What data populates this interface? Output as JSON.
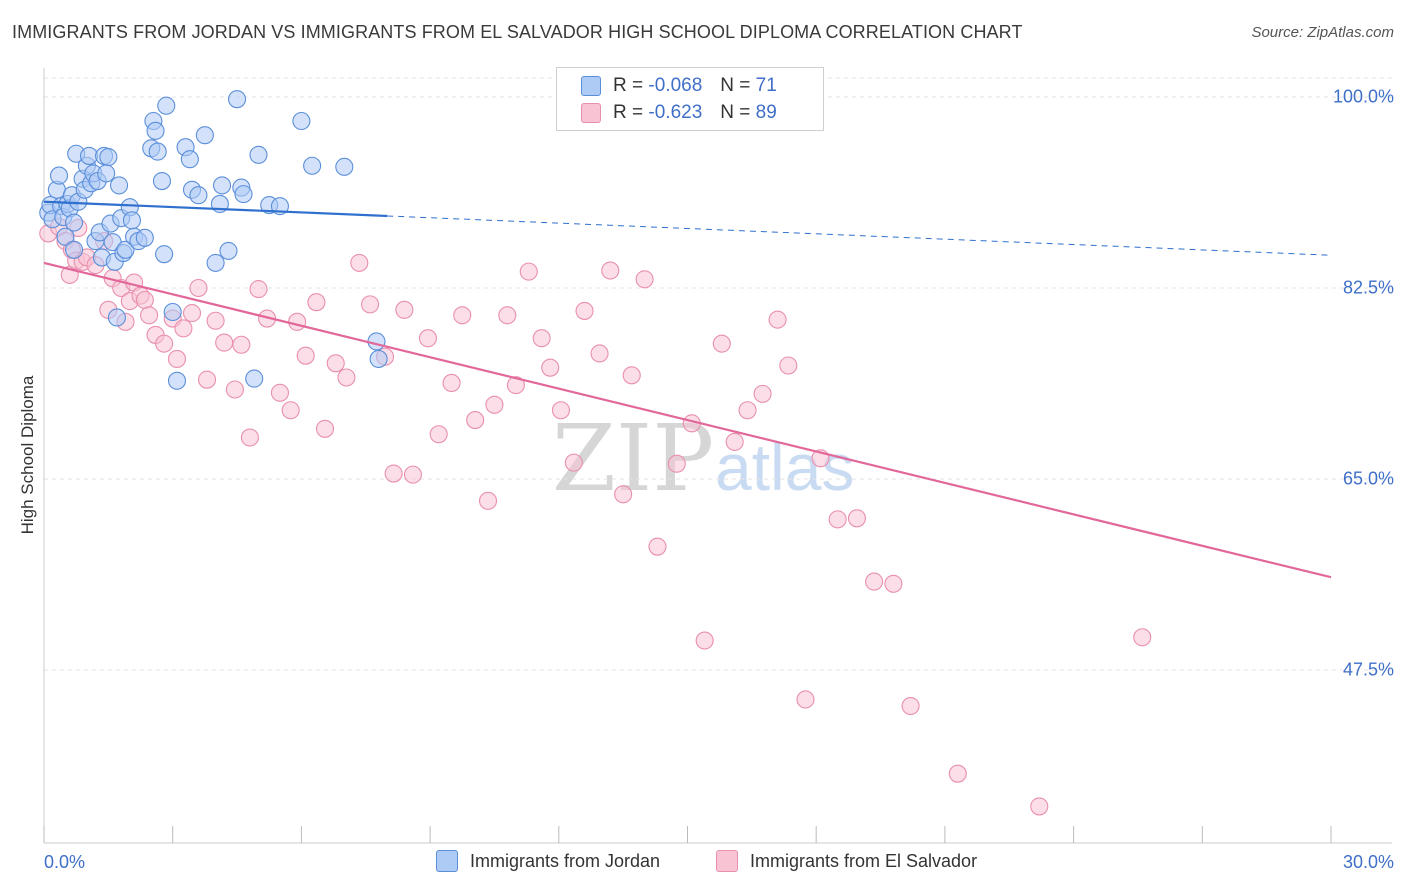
{
  "header": {
    "title": "IMMIGRANTS FROM JORDAN VS IMMIGRANTS FROM EL SALVADOR HIGH SCHOOL DIPLOMA CORRELATION CHART",
    "source": "Source: ZipAtlas.com"
  },
  "watermark": {
    "zip": "ZIP",
    "atlas": "atlas"
  },
  "legend": {
    "jordan": {
      "r_label": "R =",
      "r_value": "-0.068",
      "n_label": "N =",
      "n_value": "71"
    },
    "salvador": {
      "r_label": "R =",
      "r_value": "-0.623",
      "n_label": "N =",
      "n_value": "89"
    }
  },
  "colors": {
    "jordan_fill": "#aecbf5",
    "jordan_stroke": "#5b8fd9",
    "jordan_line": "#2f6fce",
    "salvador_fill": "#f8c3d3",
    "salvador_stroke": "#e98fae",
    "salvador_line": "#e2679a",
    "grid": "#e3e3e3",
    "axis_label": "#3f6fc9"
  },
  "chart_data": {
    "type": "scatter",
    "title": "IMMIGRANTS FROM JORDAN VS IMMIGRANTS FROM EL SALVADOR HIGH SCHOOL DIPLOMA CORRELATION CHART",
    "xlabel": "",
    "ylabel": "High School Diploma",
    "xlim": [
      0,
      30
    ],
    "ylim": [
      30,
      102
    ],
    "x_tick_labels": [
      "0.0%",
      "30.0%"
    ],
    "y_ticks": [
      100,
      82.5,
      65,
      47.5
    ],
    "y_tick_labels": [
      "100.0%",
      "82.5%",
      "65.0%",
      "47.5%"
    ],
    "grid": true,
    "legend_position": "top-center",
    "series": [
      {
        "name": "Immigrants from Jordan",
        "R": -0.068,
        "N": 71,
        "trend": {
          "x": [
            0,
            8,
            30
          ],
          "y": [
            90.4,
            89.1,
            85.5
          ],
          "solid_until": 8
        },
        "points": [
          [
            0.1,
            89.4
          ],
          [
            0.15,
            90.1
          ],
          [
            0.2,
            88.8
          ],
          [
            0.3,
            91.5
          ],
          [
            0.35,
            92.8
          ],
          [
            0.4,
            90.0
          ],
          [
            0.45,
            89.0
          ],
          [
            0.5,
            87.2
          ],
          [
            0.55,
            90.2
          ],
          [
            0.6,
            89.8
          ],
          [
            0.65,
            91.0
          ],
          [
            0.7,
            86.0
          ],
          [
            0.7,
            88.5
          ],
          [
            0.75,
            94.8
          ],
          [
            0.8,
            90.4
          ],
          [
            0.9,
            92.5
          ],
          [
            0.95,
            91.5
          ],
          [
            1.0,
            93.7
          ],
          [
            1.05,
            94.6
          ],
          [
            1.1,
            92.1
          ],
          [
            1.15,
            93.0
          ],
          [
            1.2,
            86.8
          ],
          [
            1.25,
            92.3
          ],
          [
            1.3,
            87.6
          ],
          [
            1.35,
            85.3
          ],
          [
            1.4,
            94.6
          ],
          [
            1.45,
            93.0
          ],
          [
            1.5,
            94.5
          ],
          [
            1.55,
            88.4
          ],
          [
            1.6,
            86.7
          ],
          [
            1.65,
            84.9
          ],
          [
            1.7,
            79.8
          ],
          [
            1.75,
            91.9
          ],
          [
            1.8,
            88.9
          ],
          [
            1.85,
            85.7
          ],
          [
            1.9,
            86.0
          ],
          [
            2.0,
            89.9
          ],
          [
            2.05,
            88.7
          ],
          [
            2.1,
            87.2
          ],
          [
            2.2,
            86.8
          ],
          [
            2.35,
            87.1
          ],
          [
            2.5,
            95.3
          ],
          [
            2.55,
            97.8
          ],
          [
            2.6,
            96.9
          ],
          [
            2.65,
            95.0
          ],
          [
            2.75,
            92.3
          ],
          [
            2.8,
            85.6
          ],
          [
            2.85,
            99.2
          ],
          [
            3.0,
            80.3
          ],
          [
            3.1,
            74.0
          ],
          [
            3.3,
            95.4
          ],
          [
            3.4,
            94.3
          ],
          [
            3.45,
            91.5
          ],
          [
            3.6,
            91.0
          ],
          [
            3.75,
            96.5
          ],
          [
            4.0,
            84.8
          ],
          [
            4.1,
            90.2
          ],
          [
            4.15,
            91.9
          ],
          [
            4.3,
            85.9
          ],
          [
            4.5,
            99.8
          ],
          [
            4.6,
            91.7
          ],
          [
            4.65,
            91.1
          ],
          [
            4.9,
            74.2
          ],
          [
            5.0,
            94.7
          ],
          [
            5.25,
            90.1
          ],
          [
            5.5,
            90.0
          ],
          [
            6.0,
            97.8
          ],
          [
            6.25,
            93.7
          ],
          [
            7.0,
            93.6
          ],
          [
            7.75,
            77.6
          ],
          [
            7.8,
            76.0
          ]
        ]
      },
      {
        "name": "Immigrants from El Salvador",
        "R": -0.623,
        "N": 89,
        "trend": {
          "x": [
            0,
            30
          ],
          "y": [
            84.8,
            56.0
          ]
        },
        "points": [
          [
            0.1,
            87.5
          ],
          [
            0.35,
            88.1
          ],
          [
            0.5,
            86.8
          ],
          [
            0.6,
            83.7
          ],
          [
            0.65,
            86.0
          ],
          [
            0.75,
            85.0
          ],
          [
            0.8,
            88.0
          ],
          [
            0.9,
            84.9
          ],
          [
            1.0,
            85.3
          ],
          [
            1.2,
            84.6
          ],
          [
            1.4,
            86.8
          ],
          [
            1.5,
            80.5
          ],
          [
            1.6,
            83.4
          ],
          [
            1.8,
            82.5
          ],
          [
            1.9,
            79.4
          ],
          [
            2.0,
            81.3
          ],
          [
            2.1,
            83.0
          ],
          [
            2.25,
            81.8
          ],
          [
            2.35,
            81.4
          ],
          [
            2.45,
            80.0
          ],
          [
            2.6,
            78.2
          ],
          [
            2.8,
            77.4
          ],
          [
            3.0,
            79.7
          ],
          [
            3.1,
            76.0
          ],
          [
            3.25,
            78.8
          ],
          [
            3.45,
            80.2
          ],
          [
            3.6,
            82.5
          ],
          [
            3.8,
            74.1
          ],
          [
            4.0,
            79.5
          ],
          [
            4.2,
            77.5
          ],
          [
            4.45,
            73.2
          ],
          [
            4.6,
            77.3
          ],
          [
            4.8,
            68.8
          ],
          [
            5.0,
            82.4
          ],
          [
            5.2,
            79.7
          ],
          [
            5.5,
            72.9
          ],
          [
            5.75,
            71.3
          ],
          [
            5.9,
            79.4
          ],
          [
            6.1,
            76.3
          ],
          [
            6.35,
            81.2
          ],
          [
            6.55,
            69.6
          ],
          [
            6.8,
            75.6
          ],
          [
            7.05,
            74.3
          ],
          [
            7.35,
            84.8
          ],
          [
            7.6,
            81.0
          ],
          [
            7.95,
            76.2
          ],
          [
            8.15,
            65.5
          ],
          [
            8.4,
            80.5
          ],
          [
            8.6,
            65.4
          ],
          [
            8.95,
            77.9
          ],
          [
            9.2,
            69.1
          ],
          [
            9.5,
            73.8
          ],
          [
            9.75,
            80.0
          ],
          [
            10.05,
            70.4
          ],
          [
            10.35,
            63.0
          ],
          [
            10.5,
            71.8
          ],
          [
            10.8,
            80.0
          ],
          [
            11.0,
            73.6
          ],
          [
            11.3,
            84.0
          ],
          [
            11.6,
            77.9
          ],
          [
            11.8,
            75.2
          ],
          [
            12.05,
            71.3
          ],
          [
            12.35,
            66.5
          ],
          [
            12.6,
            80.4
          ],
          [
            12.95,
            76.5
          ],
          [
            13.2,
            84.1
          ],
          [
            13.5,
            63.6
          ],
          [
            13.7,
            74.5
          ],
          [
            14.0,
            83.3
          ],
          [
            14.3,
            58.8
          ],
          [
            14.75,
            66.4
          ],
          [
            15.1,
            70.1
          ],
          [
            15.4,
            50.2
          ],
          [
            15.8,
            77.4
          ],
          [
            16.1,
            68.4
          ],
          [
            16.4,
            71.3
          ],
          [
            16.75,
            72.8
          ],
          [
            17.1,
            79.6
          ],
          [
            17.35,
            75.4
          ],
          [
            17.75,
            44.8
          ],
          [
            18.1,
            66.9
          ],
          [
            18.5,
            61.3
          ],
          [
            18.95,
            61.4
          ],
          [
            19.35,
            55.6
          ],
          [
            19.8,
            55.4
          ],
          [
            20.2,
            44.2
          ],
          [
            21.3,
            38.0
          ],
          [
            23.2,
            35.0
          ],
          [
            25.6,
            50.5
          ]
        ]
      }
    ]
  },
  "bottom_legend": {
    "jordan": "Immigrants from Jordan",
    "salvador": "Immigrants from El Salvador"
  },
  "axes": {
    "x_left": "0.0%",
    "x_right": "30.0%"
  }
}
